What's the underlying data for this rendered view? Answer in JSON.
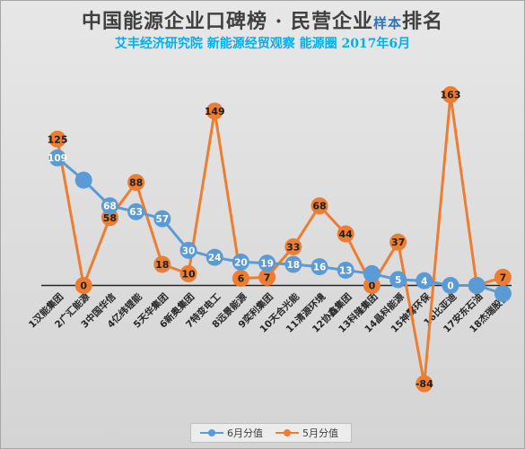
{
  "title_main": "中国能源企业口碑榜 · 民营企业",
  "title_small": "样本",
  "title_end": "排名",
  "subtitle": "艾丰经济研究院 新能源经贸观察 能源圈 2017年6月",
  "colors": {
    "june": "#5b9bd5",
    "may": "#ed7d31"
  },
  "chart_data": {
    "type": "line",
    "categories": [
      "1汉能集团",
      "2广汇能源",
      "3中国华信",
      "4亿纬锂能",
      "5天华集团",
      "6新奥集团",
      "7特变电工",
      "8远景能源",
      "9奕利集团",
      "10天合光能",
      "11清源环境",
      "12协鑫集团",
      "13科隆集团",
      "14晶科能源",
      "15神雾环保",
      "16比亚迪",
      "17安东石油",
      "18杰瑞股份"
    ],
    "series": [
      {
        "name": "6月分值",
        "values": [
          109,
          90,
          68,
          63,
          57,
          30,
          24,
          20,
          19,
          18,
          16,
          13,
          10,
          5,
          4,
          0,
          0,
          -7
        ]
      },
      {
        "name": "5月分值",
        "values": [
          125,
          0,
          58,
          88,
          18,
          10,
          149,
          6,
          7,
          33,
          68,
          44,
          0,
          37,
          -84,
          163,
          0,
          7
        ]
      }
    ],
    "labels": {
      "june": [
        "109",
        "",
        "68",
        "63",
        "57",
        "30",
        "24",
        "20",
        "19",
        "18",
        "16",
        "13",
        "",
        "5",
        "4",
        "0",
        "",
        ""
      ],
      "may": [
        "125",
        "0",
        "58",
        "88",
        "18",
        "10",
        "149",
        "6",
        "7",
        "33",
        "68",
        "44",
        "0",
        "37",
        "-84",
        "163",
        "0",
        "7"
      ]
    },
    "ylim": [
      -90,
      175
    ],
    "legend_position": "bottom"
  }
}
